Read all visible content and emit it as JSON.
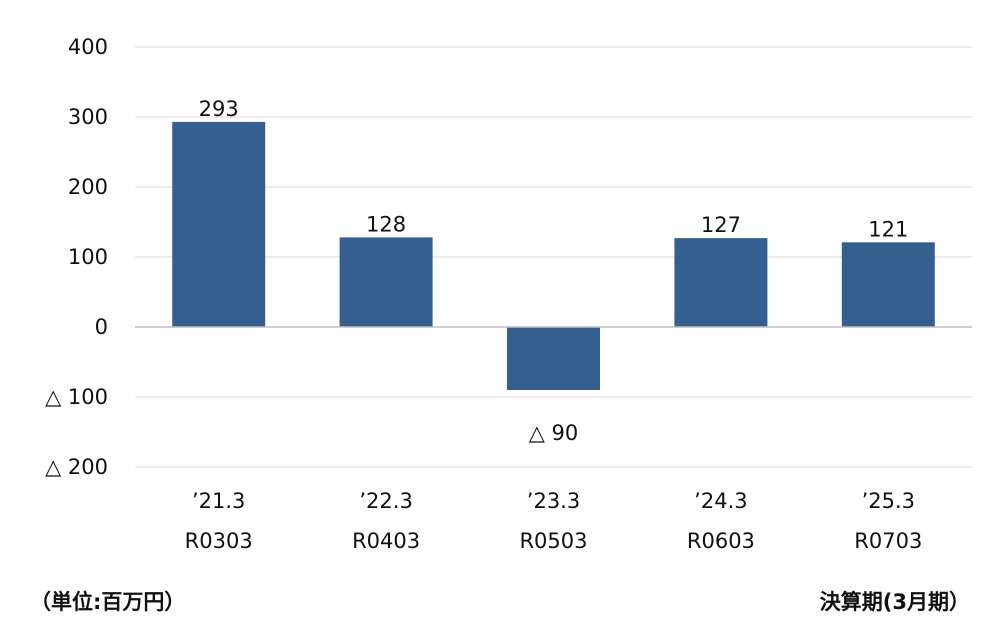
{
  "chart_data": {
    "type": "bar",
    "categories": [
      {
        "line1": "’21.3",
        "line2": "R0303"
      },
      {
        "line1": "’22.3",
        "line2": "R0403"
      },
      {
        "line1": "’23.3",
        "line2": "R0503"
      },
      {
        "line1": "’24.3",
        "line2": "R0603"
      },
      {
        "line1": "’25.3",
        "line2": "R0703"
      }
    ],
    "values": [
      293,
      128,
      -90,
      127,
      121
    ],
    "value_labels": [
      "293",
      "128",
      "△ 90",
      "127",
      "121"
    ],
    "ylim": [
      -200,
      400
    ],
    "yticks": [
      400,
      300,
      200,
      100,
      0,
      -100,
      -200
    ],
    "ytick_labels": [
      "400",
      "300",
      "200",
      "100",
      "0",
      "△ 100",
      "△ 200"
    ],
    "grid": true,
    "bar_color": "#355f8f",
    "grid_color": "#d9d9d9",
    "zero_line_color": "#bfbfbf"
  },
  "footer": {
    "unit_label": "（単位:百万円）",
    "period_label": "決算期(3月期）"
  }
}
